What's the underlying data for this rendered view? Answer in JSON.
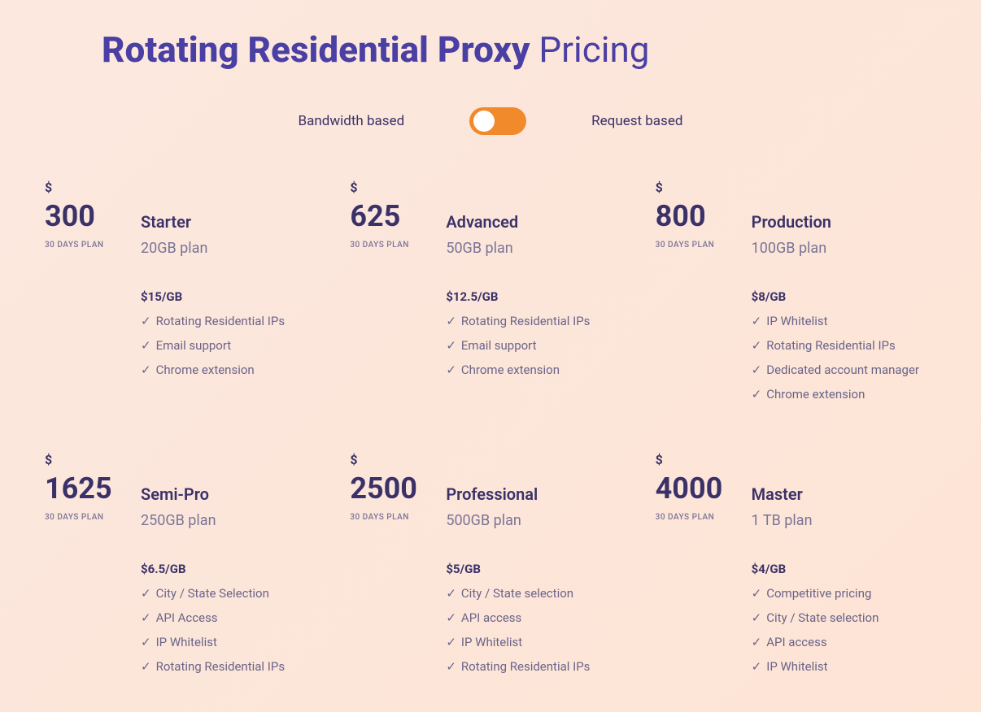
{
  "colors": {
    "heading": "#4a3fa3",
    "text_dark": "#3a3168",
    "text_muted": "#7a7497",
    "text_body": "#6b648a",
    "toggle_bg": "#f18a2b",
    "bg_start": "#fce8df",
    "bg_end": "#fde4d5"
  },
  "title": {
    "bold": "Rotating Residential Proxy",
    "light": " Pricing"
  },
  "toggle": {
    "left_label": "Bandwidth based",
    "right_label": "Request based",
    "state": "left"
  },
  "currency_symbol": "$",
  "duration_label": "30 DAYS PLAN",
  "check_glyph": "✓",
  "plans": [
    {
      "price": "300",
      "name": "Starter",
      "sub": "20GB plan",
      "rate": "$15/GB",
      "features": [
        "Rotating Residential IPs",
        "Email support",
        "Chrome extension"
      ]
    },
    {
      "price": "625",
      "name": "Advanced",
      "sub": "50GB plan",
      "rate": "$12.5/GB",
      "features": [
        "Rotating Residential IPs",
        "Email support",
        "Chrome extension"
      ]
    },
    {
      "price": "800",
      "name": "Production",
      "sub": "100GB plan",
      "rate": "$8/GB",
      "features": [
        "IP Whitelist",
        "Rotating Residential IPs",
        "Dedicated account manager",
        "Chrome extension"
      ]
    },
    {
      "price": "1625",
      "name": "Semi-Pro",
      "sub": "250GB plan",
      "rate": "$6.5/GB",
      "features": [
        "City / State Selection",
        "API Access",
        "IP Whitelist",
        "Rotating Residential IPs"
      ]
    },
    {
      "price": "2500",
      "name": "Professional",
      "sub": "500GB plan",
      "rate": "$5/GB",
      "features": [
        "City / State selection",
        "API access",
        "IP Whitelist",
        "Rotating Residential IPs"
      ]
    },
    {
      "price": "4000",
      "name": "Master",
      "sub": "1 TB plan",
      "rate": "$4/GB",
      "features": [
        "Competitive pricing",
        "City / State selection",
        "API access",
        "IP Whitelist"
      ]
    }
  ]
}
